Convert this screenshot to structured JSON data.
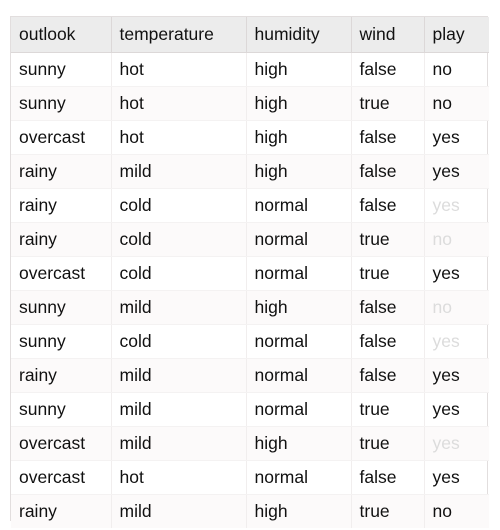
{
  "table": {
    "columns": [
      "outlook",
      "temperature",
      "humidity",
      "wind",
      "play"
    ],
    "rows": [
      {
        "outlook": "sunny",
        "temperature": "hot",
        "humidity": "high",
        "wind": "false",
        "play": "no",
        "play_faded": false
      },
      {
        "outlook": "sunny",
        "temperature": "hot",
        "humidity": "high",
        "wind": "true",
        "play": "no",
        "play_faded": false
      },
      {
        "outlook": "overcast",
        "temperature": "hot",
        "humidity": "high",
        "wind": "false",
        "play": "yes",
        "play_faded": false
      },
      {
        "outlook": "rainy",
        "temperature": "mild",
        "humidity": "high",
        "wind": "false",
        "play": "yes",
        "play_faded": false
      },
      {
        "outlook": "rainy",
        "temperature": "cold",
        "humidity": "normal",
        "wind": "false",
        "play": "yes",
        "play_faded": true
      },
      {
        "outlook": "rainy",
        "temperature": "cold",
        "humidity": "normal",
        "wind": "true",
        "play": "no",
        "play_faded": true
      },
      {
        "outlook": "overcast",
        "temperature": "cold",
        "humidity": "normal",
        "wind": "true",
        "play": "yes",
        "play_faded": false
      },
      {
        "outlook": "sunny",
        "temperature": "mild",
        "humidity": "high",
        "wind": "false",
        "play": "no",
        "play_faded": true
      },
      {
        "outlook": "sunny",
        "temperature": "cold",
        "humidity": "normal",
        "wind": "false",
        "play": "yes",
        "play_faded": true
      },
      {
        "outlook": "rainy",
        "temperature": "mild",
        "humidity": "normal",
        "wind": "false",
        "play": "yes",
        "play_faded": false
      },
      {
        "outlook": "sunny",
        "temperature": "mild",
        "humidity": "normal",
        "wind": "true",
        "play": "yes",
        "play_faded": false
      },
      {
        "outlook": "overcast",
        "temperature": "mild",
        "humidity": "high",
        "wind": "true",
        "play": "yes",
        "play_faded": true
      },
      {
        "outlook": "overcast",
        "temperature": "hot",
        "humidity": "normal",
        "wind": "false",
        "play": "yes",
        "play_faded": false
      },
      {
        "outlook": "rainy",
        "temperature": "mild",
        "humidity": "high",
        "wind": "true",
        "play": "no",
        "play_faded": false
      }
    ]
  },
  "colors": {
    "header_bg": "#ececec",
    "text": "#111111",
    "faded_text": "#dcdcdc",
    "border": "#e2dede"
  }
}
